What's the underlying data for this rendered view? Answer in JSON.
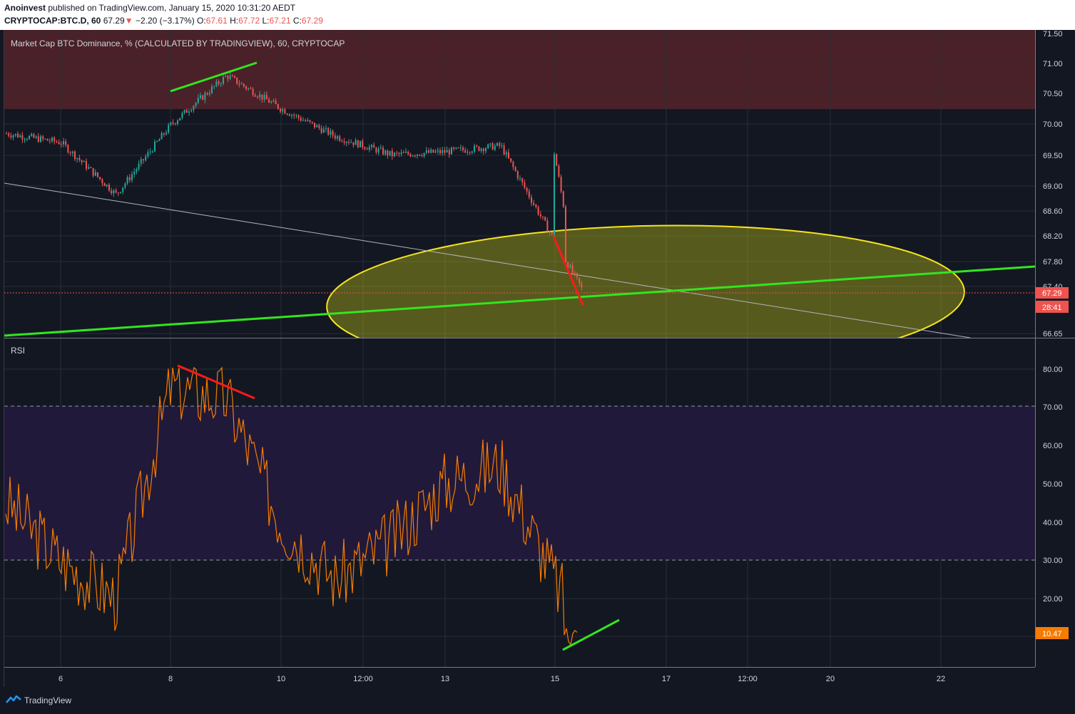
{
  "header": {
    "publisher": "Anoinvest",
    "published_text": "published on TradingView.com, January 15, 2020 10:31:20 AEDT",
    "symbol": "CRYPTOCAP:BTC.D, 60",
    "last": "67.29",
    "change": "−2.20 (−3.17%)",
    "o_label": "O:",
    "o": "67.61",
    "h_label": "H:",
    "h": "67.72",
    "l_label": "L:",
    "l": "67.21",
    "c_label": "C:",
    "c": "67.29"
  },
  "main_pane": {
    "legend": "Market Cap BTC Dominance, % (CALCULATED BY TRADINGVIEW), 60, CRYPTOCAP",
    "price_ticks": [
      "71.50",
      "71.00",
      "70.50",
      "70.00",
      "69.50",
      "69.00",
      "68.60",
      "68.20",
      "67.80",
      "67.40",
      "66.65"
    ],
    "last_price_tag": "67.29",
    "countdown_tag": "28:41"
  },
  "rsi_pane": {
    "legend": "RSI",
    "ticks": [
      "80.00",
      "70.00",
      "60.00",
      "50.00",
      "40.00",
      "30.00",
      "20.00"
    ],
    "last_tag": "10.47"
  },
  "time_axis": {
    "ticks": [
      "6",
      "8",
      "10",
      "12:00",
      "13",
      "15",
      "17",
      "12:00",
      "20",
      "22"
    ]
  },
  "footer": {
    "brand": "TradingView"
  },
  "colors": {
    "background": "#131722",
    "up": "#26a69a",
    "down": "#ef5350",
    "rsi": "#f57c00",
    "trend_green": "#33e51f",
    "trend_red": "#ff1a1a",
    "ellipse": "#f5e51e",
    "resistance_zone": "#4a2128",
    "rsi_band": "#21193a"
  },
  "chart_data": [
    {
      "type": "candlestick",
      "title": "Market Cap BTC Dominance, % (CALCULATED BY TRADINGVIEW), 60, CRYPTOCAP",
      "x": [
        "6",
        "8",
        "10",
        "12:00",
        "13",
        "15",
        "17",
        "12:00",
        "20",
        "22"
      ],
      "ylim": [
        66.65,
        71.55
      ],
      "key_closes": [
        {
          "t": "Jan 5",
          "v": 69.85
        },
        {
          "t": "Jan 6",
          "v": 69.7
        },
        {
          "t": "Jan 7",
          "v": 68.85
        },
        {
          "t": "Jan 8",
          "v": 70.0
        },
        {
          "t": "Jan 9",
          "v": 70.8
        },
        {
          "t": "Jan 10",
          "v": 70.25
        },
        {
          "t": "Jan 11",
          "v": 69.8
        },
        {
          "t": "Jan 12",
          "v": 69.5
        },
        {
          "t": "Jan 13",
          "v": 69.55
        },
        {
          "t": "Jan 14",
          "v": 69.65
        },
        {
          "t": "Jan 15",
          "v": 67.29
        }
      ],
      "resistance_zone": [
        70.25,
        71.55
      ]
    },
    {
      "type": "line",
      "title": "RSI",
      "ylim": [
        0,
        88
      ],
      "overbought": 70,
      "oversold": 30,
      "key_values": [
        {
          "t": "Jan 5",
          "v": 45
        },
        {
          "t": "Jan 6",
          "v": 30
        },
        {
          "t": "Jan 7",
          "v": 20
        },
        {
          "t": "Jan 8",
          "v": 75
        },
        {
          "t": "Jan 9",
          "v": 72
        },
        {
          "t": "Jan 10",
          "v": 40
        },
        {
          "t": "Jan 11",
          "v": 25
        },
        {
          "t": "Jan 12",
          "v": 35
        },
        {
          "t": "Jan 13",
          "v": 50
        },
        {
          "t": "Jan 14",
          "v": 55
        },
        {
          "t": "Jan 15",
          "v": 10.47
        }
      ]
    }
  ]
}
